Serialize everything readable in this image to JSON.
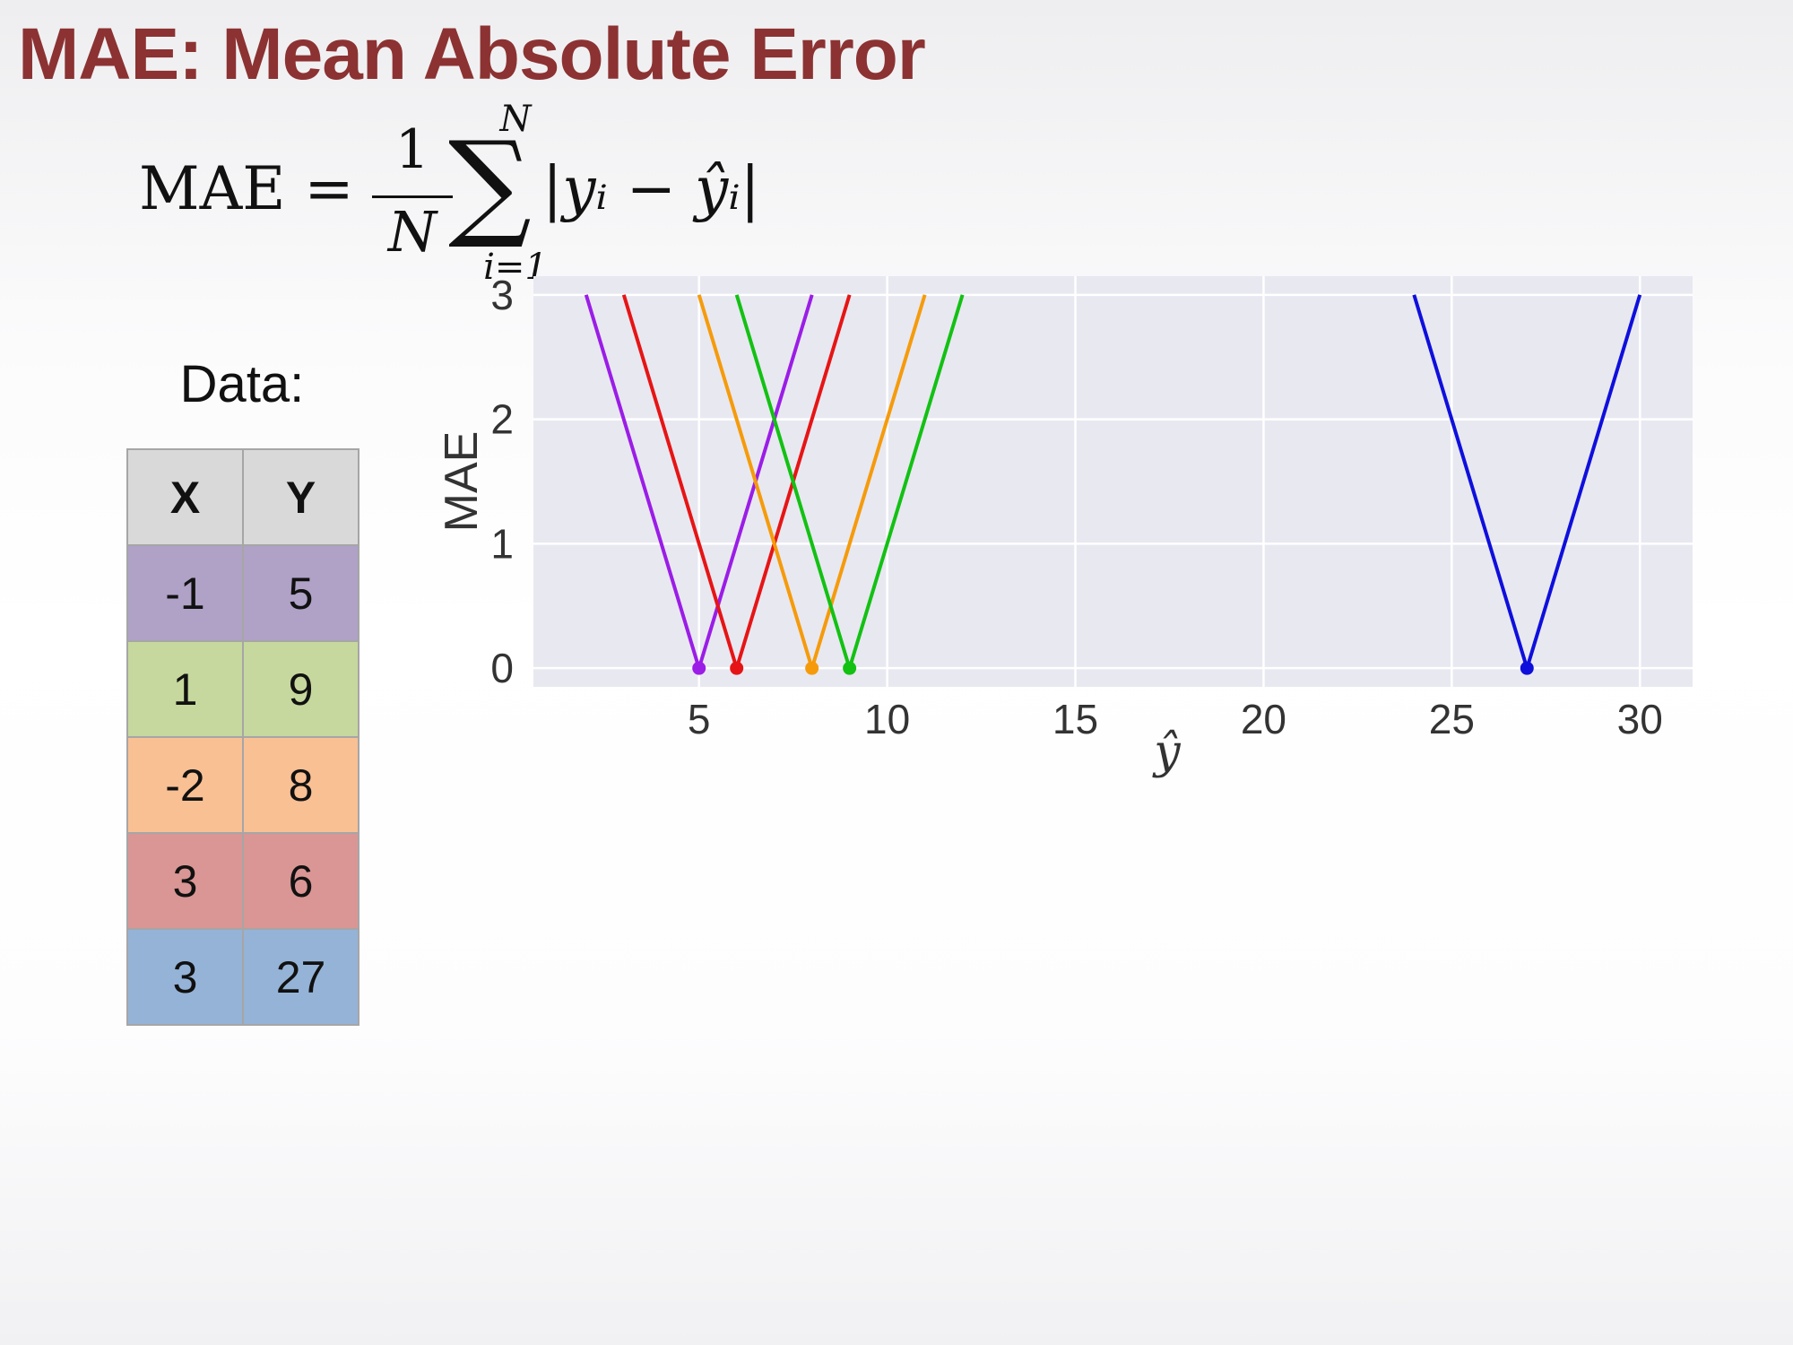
{
  "slide": {
    "title": "MAE: Mean Absolute Error",
    "formula": {
      "lhs": "MAE =",
      "numerator": "1",
      "denominator": "N",
      "sum_upper": "N",
      "sum_symbol": "∑",
      "sum_lower": "i=1",
      "term": "|yᵢ − ŷᵢ|"
    },
    "data_heading": "Data:",
    "table": {
      "headers": [
        "X",
        "Y"
      ],
      "rows": [
        {
          "x": "-1",
          "y": "5",
          "color": "#b0a1c7"
        },
        {
          "x": "1",
          "y": "9",
          "color": "#c6d89d"
        },
        {
          "x": "-2",
          "y": "8",
          "color": "#f9c094"
        },
        {
          "x": "3",
          "y": "6",
          "color": "#d99694"
        },
        {
          "x": "3",
          "y": "27",
          "color": "#95b3d7"
        }
      ]
    }
  },
  "chart_data": {
    "type": "line",
    "title": "",
    "xlabel": "ŷ",
    "ylabel": "MAE",
    "xlim": [
      0.6,
      31.4
    ],
    "ylim": [
      -0.15,
      3.15
    ],
    "x_ticks": [
      5,
      10,
      15,
      20,
      25,
      30
    ],
    "y_ticks": [
      0,
      1,
      2,
      3
    ],
    "grid": true,
    "background": "#e8e8f1",
    "series": [
      {
        "color": "#9b1de6",
        "x": [
          2,
          5,
          8
        ],
        "y": [
          3,
          0,
          3
        ],
        "minimum": [
          5,
          0
        ]
      },
      {
        "color": "#e61515",
        "x": [
          3,
          6,
          9
        ],
        "y": [
          3,
          0,
          3
        ],
        "minimum": [
          6,
          0
        ]
      },
      {
        "color": "#f59b0b",
        "x": [
          5,
          8,
          11
        ],
        "y": [
          3,
          0,
          3
        ],
        "minimum": [
          8,
          0
        ]
      },
      {
        "color": "#13c113",
        "x": [
          6,
          9,
          12
        ],
        "y": [
          3,
          0,
          3
        ],
        "minimum": [
          9,
          0
        ]
      },
      {
        "color": "#0f0fdc",
        "x": [
          24,
          27,
          30
        ],
        "y": [
          3,
          0,
          3
        ],
        "minimum": [
          27,
          0
        ]
      }
    ]
  }
}
